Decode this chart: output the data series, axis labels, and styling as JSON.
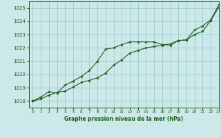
{
  "title": "Graphe pression niveau de la mer (hPa)",
  "background_color": "#cce8e8",
  "grid_color": "#99cccc",
  "line_color": "#1a5c1a",
  "xlim": [
    -0.5,
    23
  ],
  "ylim": [
    1017.5,
    1025.5
  ],
  "yticks": [
    1018,
    1019,
    1020,
    1021,
    1022,
    1023,
    1024,
    1025
  ],
  "xticks": [
    0,
    1,
    2,
    3,
    4,
    5,
    6,
    7,
    8,
    9,
    10,
    11,
    12,
    13,
    14,
    15,
    16,
    17,
    18,
    19,
    20,
    21,
    22,
    23
  ],
  "series1_x": [
    0,
    1,
    2,
    3,
    4,
    5,
    6,
    7,
    8,
    9,
    10,
    11,
    12,
    13,
    14,
    15,
    16,
    17,
    18,
    19,
    20,
    21,
    22,
    23
  ],
  "series1_y": [
    1018.0,
    1018.3,
    1018.7,
    1018.6,
    1019.2,
    1019.5,
    1019.85,
    1020.3,
    1021.0,
    1021.9,
    1022.0,
    1022.25,
    1022.45,
    1022.45,
    1022.45,
    1022.45,
    1022.25,
    1022.2,
    1022.55,
    1022.6,
    1023.0,
    1023.25,
    1024.05,
    1025.05
  ],
  "series2_x": [
    0,
    1,
    2,
    3,
    4,
    5,
    6,
    7,
    8,
    9,
    10,
    11,
    12,
    13,
    14,
    15,
    16,
    17,
    18,
    19,
    20,
    21,
    22,
    23
  ],
  "series2_y": [
    1018.0,
    1018.15,
    1018.45,
    1018.65,
    1018.75,
    1019.05,
    1019.4,
    1019.55,
    1019.75,
    1020.1,
    1020.7,
    1021.1,
    1021.6,
    1021.8,
    1022.0,
    1022.1,
    1022.2,
    1022.3,
    1022.55,
    1022.6,
    1023.35,
    1023.65,
    1024.1,
    1025.25
  ]
}
